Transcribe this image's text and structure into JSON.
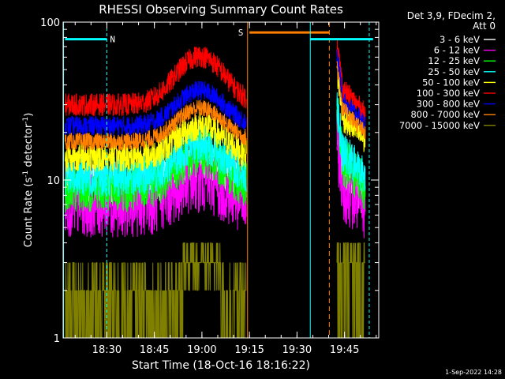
{
  "chart_data": {
    "type": "line",
    "title": "RHESSI Observing Summary Count Rates",
    "xlabel": "Start Time (18-Oct-16 18:16:22)",
    "ylabel_main": "Count Rate (s",
    "ylabel_sup1": "-1",
    "ylabel_mid": " detector",
    "ylabel_sup2": "-1",
    "ylabel_end": ")",
    "y_scale": "log",
    "ylim": [
      1,
      100
    ],
    "xlim_minutes": [
      18.27,
      19.93
    ],
    "x_ticks": [
      {
        "label": "18:30",
        "value": 18.5
      },
      {
        "label": "18:45",
        "value": 18.75
      },
      {
        "label": "19:00",
        "value": 19.0
      },
      {
        "label": "19:15",
        "value": 19.25
      },
      {
        "label": "19:30",
        "value": 19.5
      },
      {
        "label": "19:45",
        "value": 19.75
      }
    ],
    "y_ticks": [
      {
        "label": "100",
        "value": 100
      },
      {
        "label": "10",
        "value": 10
      },
      {
        "label": "1",
        "value": 1
      }
    ],
    "legend_header": [
      "Det 3,9, FDecim 2,",
      "Att 0"
    ],
    "legend_placement": "top-right",
    "series": [
      {
        "name": "3 - 6 keV",
        "color": "#ffffff"
      },
      {
        "name": "6 - 12 keV",
        "color": "#ff00ff"
      },
      {
        "name": "12 - 25 keV",
        "color": "#00ff00"
      },
      {
        "name": "25 - 50 keV",
        "color": "#00ffff"
      },
      {
        "name": "50 - 100 keV",
        "color": "#ffff00"
      },
      {
        "name": "100 - 300 keV",
        "color": "#ff0000"
      },
      {
        "name": "300 - 800 keV",
        "color": "#0000ff"
      },
      {
        "name": "800 - 7000 keV",
        "color": "#ff8000"
      },
      {
        "name": "7000 - 15000 keV",
        "color": "#808000"
      }
    ],
    "annotations": [
      {
        "text": "N",
        "color": "#00ffff"
      },
      {
        "text": "S",
        "color": "#ff8000"
      }
    ],
    "footer": "1-Sep-2022 14:28"
  }
}
